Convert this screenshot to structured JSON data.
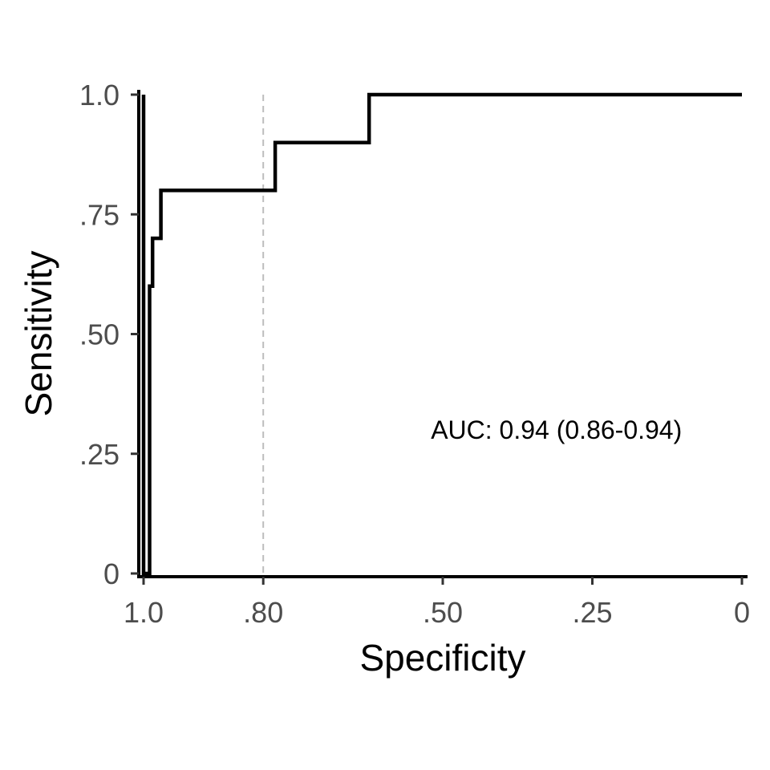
{
  "chart_data": {
    "type": "line",
    "title": "",
    "xlabel": "Specificity",
    "ylabel": "Sensitivity",
    "x_reversed": true,
    "xlim": [
      1.0,
      0
    ],
    "ylim": [
      0,
      1.0
    ],
    "x_ticks": [
      {
        "value": 1.0,
        "label": "1.0"
      },
      {
        "value": 0.8,
        "label": ".80"
      },
      {
        "value": 0.5,
        "label": ".50"
      },
      {
        "value": 0.25,
        "label": ".25"
      },
      {
        "value": 0,
        "label": "0"
      }
    ],
    "y_ticks": [
      {
        "value": 0,
        "label": "0"
      },
      {
        "value": 0.25,
        "label": ".25"
      },
      {
        "value": 0.5,
        "label": ".50"
      },
      {
        "value": 0.75,
        "label": ".75"
      },
      {
        "value": 1.0,
        "label": "1.0"
      }
    ],
    "reference_line": {
      "axis": "x",
      "value": 0.8,
      "style": "dashed",
      "color": "#bdbdbd"
    },
    "series": [
      {
        "color": "#000000",
        "points": [
          {
            "x": 1.0,
            "y": 1.0
          },
          {
            "x": 1.0,
            "y": 0
          },
          {
            "x": 0.99,
            "y": 0
          },
          {
            "x": 0.99,
            "y": 0.6
          },
          {
            "x": 0.985,
            "y": 0.6
          },
          {
            "x": 0.985,
            "y": 0.7
          },
          {
            "x": 0.971,
            "y": 0.7
          },
          {
            "x": 0.971,
            "y": 0.8
          },
          {
            "x": 0.78,
            "y": 0.8
          },
          {
            "x": 0.78,
            "y": 0.9
          },
          {
            "x": 0.623,
            "y": 0.9
          },
          {
            "x": 0.623,
            "y": 1.0
          },
          {
            "x": 0,
            "y": 1.0
          }
        ]
      }
    ],
    "annotation": {
      "text": "AUC: 0.94 (0.86-0.94)",
      "x": 0.31,
      "y": 0.3
    },
    "grid": false,
    "legend": "none"
  }
}
